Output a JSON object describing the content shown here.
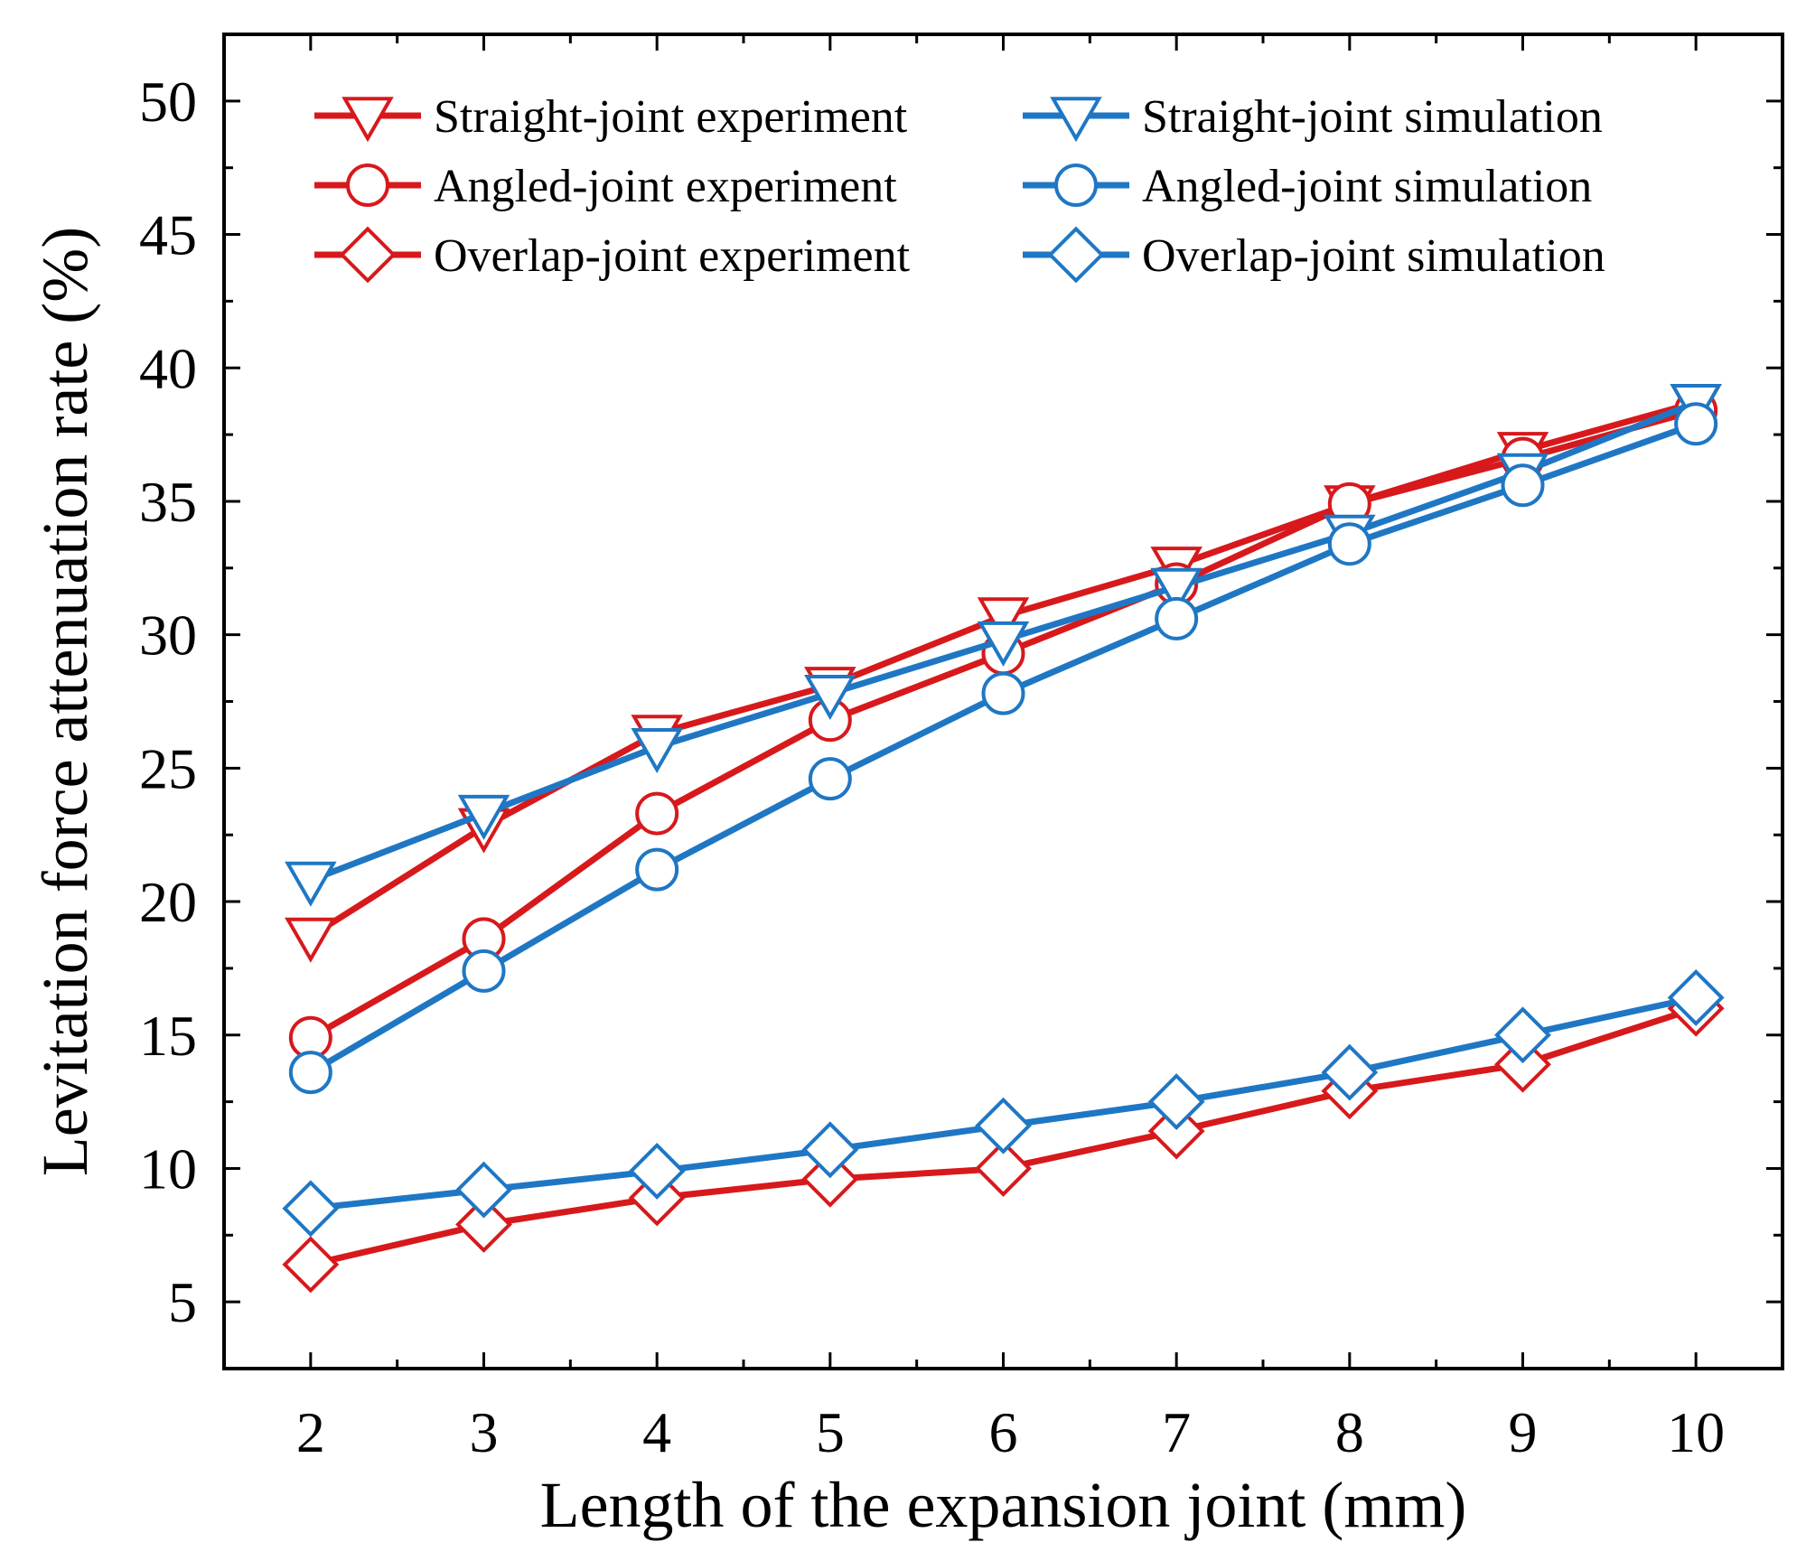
{
  "chart_data": {
    "type": "line",
    "title": "",
    "xlabel": "Length of the expansion joint (mm)",
    "ylabel": "Levitation force attenuation rate (%)",
    "x": [
      2,
      3,
      4,
      5,
      6,
      7,
      8,
      9,
      10
    ],
    "xlim": [
      1.5,
      10.5
    ],
    "ylim": [
      2.5,
      52.5
    ],
    "xticks": [
      "2",
      "3",
      "4",
      "5",
      "6",
      "7",
      "8",
      "9",
      "10"
    ],
    "yticks": [
      "5",
      "10",
      "15",
      "20",
      "25",
      "30",
      "35",
      "40",
      "45",
      "50"
    ],
    "grid": false,
    "legend_position": "top",
    "colors": {
      "experiment": "#d7191c",
      "simulation": "#1f77c4"
    },
    "series": [
      {
        "name": "Straight-joint experiment",
        "marker": "triangle-down",
        "group": "experiment",
        "values": [
          18.7,
          22.8,
          26.3,
          28.1,
          30.7,
          32.6,
          34.9,
          36.9,
          38.7
        ]
      },
      {
        "name": "Angled-joint experiment",
        "marker": "circle",
        "group": "experiment",
        "values": [
          14.9,
          18.6,
          23.3,
          26.8,
          29.3,
          31.9,
          34.9,
          36.6,
          38.4
        ]
      },
      {
        "name": "Overlap-joint experiment",
        "marker": "diamond",
        "group": "experiment",
        "values": [
          6.4,
          7.9,
          8.9,
          9.6,
          10.0,
          11.4,
          12.9,
          13.9,
          16.0
        ]
      },
      {
        "name": "Straight-joint simulation",
        "marker": "triangle-down",
        "group": "simulation",
        "values": [
          20.8,
          23.3,
          25.8,
          27.8,
          29.8,
          31.8,
          33.8,
          36.1,
          38.7
        ]
      },
      {
        "name": "Angled-joint simulation",
        "marker": "circle",
        "group": "simulation",
        "values": [
          13.6,
          17.4,
          21.2,
          24.6,
          27.8,
          30.6,
          33.4,
          35.6,
          37.9
        ]
      },
      {
        "name": "Overlap-joint simulation",
        "marker": "diamond",
        "group": "simulation",
        "values": [
          8.5,
          9.2,
          9.9,
          10.7,
          11.6,
          12.5,
          13.6,
          15.0,
          16.4
        ]
      }
    ]
  }
}
